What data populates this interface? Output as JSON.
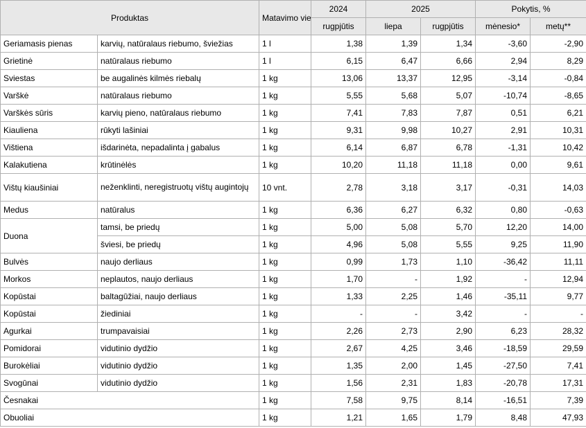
{
  "header": {
    "product": "Produktas",
    "unit": "Matavimo vienetas",
    "year_2024": "2024",
    "year_2025": "2025",
    "change": "Pokytis, %",
    "sub_aug_2024": "rugpjūtis",
    "sub_jul_2025": "liepa",
    "sub_aug_2025": "rugpjūtis",
    "sub_month": "mėnesio*",
    "sub_year": "metų**"
  },
  "rows": [
    {
      "name": "Geriamasis pienas",
      "desc": "karvių, natūralaus riebumo, šviežias",
      "unit": "1 l",
      "aug24": "1,38",
      "jul25": "1,39",
      "aug25": "1,34",
      "month": "-3,60",
      "year": "-2,90"
    },
    {
      "name": "Grietinė",
      "desc": "natūralaus riebumo",
      "unit": "1 l",
      "aug24": "6,15",
      "jul25": "6,47",
      "aug25": "6,66",
      "month": "2,94",
      "year": "8,29"
    },
    {
      "name": "Sviestas",
      "desc": "be augalinės kilmės riebalų",
      "unit": "1 kg",
      "aug24": "13,06",
      "jul25": "13,37",
      "aug25": "12,95",
      "month": "-3,14",
      "year": "-0,84"
    },
    {
      "name": "Varškė",
      "desc": "natūralaus riebumo",
      "unit": "1 kg",
      "aug24": "5,55",
      "jul25": "5,68",
      "aug25": "5,07",
      "month": "-10,74",
      "year": "-8,65"
    },
    {
      "name": "Varškės sūris",
      "desc": "karvių pieno, natūralaus riebumo",
      "unit": "1 kg",
      "aug24": "7,41",
      "jul25": "7,83",
      "aug25": "7,87",
      "month": "0,51",
      "year": "6,21"
    },
    {
      "name": "Kiauliena",
      "desc": "rūkyti lašiniai",
      "unit": "1 kg",
      "aug24": "9,31",
      "jul25": "9,98",
      "aug25": "10,27",
      "month": "2,91",
      "year": "10,31"
    },
    {
      "name": "Vištiena",
      "desc": "išdarinėta, nepadalinta į gabalus",
      "unit": "1 kg",
      "aug24": "6,14",
      "jul25": "6,87",
      "aug25": "6,78",
      "month": "-1,31",
      "year": "10,42"
    },
    {
      "name": "Kalakutiena",
      "desc": "krūtinėlės",
      "unit": "1 kg",
      "aug24": "10,20",
      "jul25": "11,18",
      "aug25": "11,18",
      "month": "0,00",
      "year": "9,61"
    },
    {
      "name": "Vištų kiaušiniai",
      "desc": "neženklinti, neregistruotų vištų augintojų",
      "unit": "10 vnt.",
      "aug24": "2,78",
      "jul25": "3,18",
      "aug25": "3,17",
      "month": "-0,31",
      "year": "14,03"
    },
    {
      "name": "Medus",
      "desc": "natūralus",
      "unit": "1 kg",
      "aug24": "6,36",
      "jul25": "6,27",
      "aug25": "6,32",
      "month": "0,80",
      "year": "-0,63"
    },
    {
      "name": "Duona",
      "desc": "tamsi, be priedų",
      "unit": "1 kg",
      "aug24": "5,00",
      "jul25": "5,08",
      "aug25": "5,70",
      "month": "12,20",
      "year": "14,00"
    },
    {
      "name": "",
      "desc": "šviesi, be priedų",
      "unit": "1 kg",
      "aug24": "4,96",
      "jul25": "5,08",
      "aug25": "5,55",
      "month": "9,25",
      "year": "11,90"
    },
    {
      "name": "Bulvės",
      "desc": "naujo derliaus",
      "unit": "1 kg",
      "aug24": "0,99",
      "jul25": "1,73",
      "aug25": "1,10",
      "month": "-36,42",
      "year": "11,11"
    },
    {
      "name": "Morkos",
      "desc": "neplautos, naujo derliaus",
      "unit": "1 kg",
      "aug24": "1,70",
      "jul25": "-",
      "aug25": "1,92",
      "month": "-",
      "year": "12,94"
    },
    {
      "name": "Kopūstai",
      "desc": "baltagūžiai, naujo derliaus",
      "unit": "1 kg",
      "aug24": "1,33",
      "jul25": "2,25",
      "aug25": "1,46",
      "month": "-35,11",
      "year": "9,77"
    },
    {
      "name": "Kopūstai",
      "desc": "žiediniai",
      "unit": "1 kg",
      "aug24": "-",
      "jul25": "-",
      "aug25": "3,42",
      "month": "-",
      "year": "-"
    },
    {
      "name": "Agurkai",
      "desc": "trumpavaisiai",
      "unit": "1 kg",
      "aug24": "2,26",
      "jul25": "2,73",
      "aug25": "2,90",
      "month": "6,23",
      "year": "28,32"
    },
    {
      "name": "Pomidorai",
      "desc": "vidutinio dydžio",
      "unit": "1 kg",
      "aug24": "2,67",
      "jul25": "4,25",
      "aug25": "3,46",
      "month": "-18,59",
      "year": "29,59"
    },
    {
      "name": "Burokėliai",
      "desc": "vidutinio dydžio",
      "unit": "1 kg",
      "aug24": "1,35",
      "jul25": "2,00",
      "aug25": "1,45",
      "month": "-27,50",
      "year": "7,41"
    },
    {
      "name": "Svogūnai",
      "desc": "vidutinio dydžio",
      "unit": "1 kg",
      "aug24": "1,56",
      "jul25": "2,31",
      "aug25": "1,83",
      "month": "-20,78",
      "year": "17,31"
    },
    {
      "name": "Česnakai",
      "desc": "",
      "unit": "1 kg",
      "aug24": "7,58",
      "jul25": "9,75",
      "aug25": "8,14",
      "month": "-16,51",
      "year": "7,39"
    },
    {
      "name": "Obuoliai",
      "desc": "",
      "unit": "1 kg",
      "aug24": "1,21",
      "jul25": "1,65",
      "aug25": "1,79",
      "month": "8,48",
      "year": "47,93"
    }
  ]
}
